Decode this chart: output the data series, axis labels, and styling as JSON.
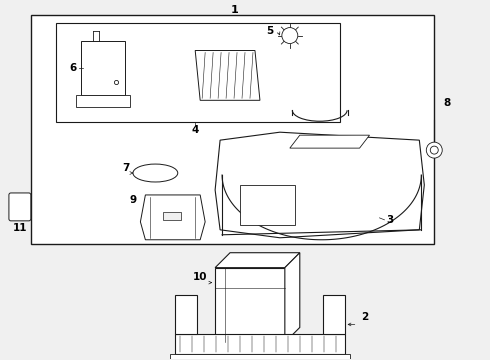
{
  "bg_color": "#f0f0f0",
  "line_color": "#1a1a1a",
  "label_color": "#000000",
  "fig_w": 4.9,
  "fig_h": 3.6,
  "dpi": 100
}
